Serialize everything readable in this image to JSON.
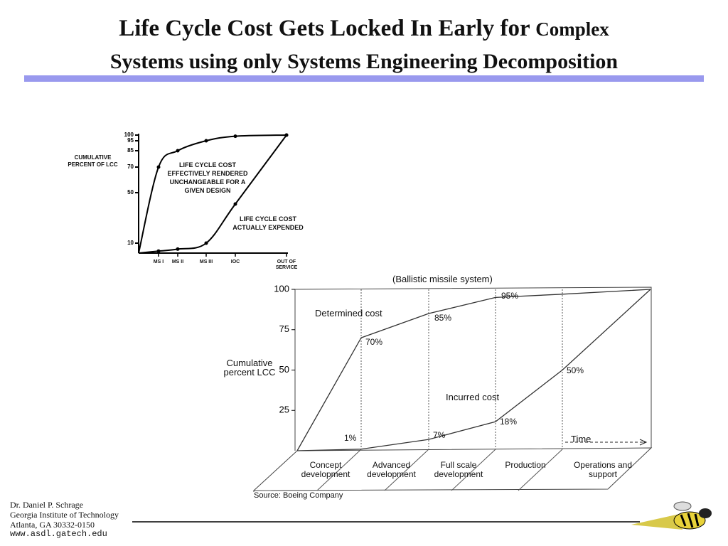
{
  "title": {
    "line1": "Life Cycle Cost Gets Locked In Early for",
    "line1_small": "Complex",
    "line2": "Systems using only Systems Engineering Decomposition"
  },
  "footer": [
    "Dr. Daniel P. Schrage",
    "Georgia Institute of Technology",
    "Atlanta, GA  30332-0150",
    "www.asdl.gatech.edu"
  ],
  "chart_data": [
    {
      "type": "line",
      "smooth": true,
      "y_label": "CUMULATIVE PERCENT OF LCC",
      "categories": [
        null,
        "MS I",
        "MS II",
        "MS III",
        "IOC",
        "OUT OF SERVICE"
      ],
      "ylim": [
        0,
        100
      ],
      "yticks": [
        10,
        50,
        70,
        85,
        95,
        100
      ],
      "series": [
        {
          "name": "LIFE CYCLE COST EFFECTIVELY RENDERED UNCHANGEABLE FOR A GIVEN DESIGN",
          "color": "#000000",
          "values": [
            0,
            70,
            85,
            95,
            99,
            100
          ]
        },
        {
          "name": "LIFE CYCLE COST ACTUALLY EXPENDED",
          "color": "#000000",
          "values": [
            0,
            2,
            4,
            10,
            41,
            100
          ]
        }
      ]
    },
    {
      "type": "line",
      "smooth": false,
      "title": "(Ballistic missile system)",
      "y_label": "Cumulative percent LCC",
      "x_label": "Time",
      "source": "Source:  Boeing Company",
      "categories": [
        "Concept development",
        "Advanced development",
        "Full scale development",
        "Production",
        "Operations and support",
        null
      ],
      "ylim": [
        0,
        100
      ],
      "yticks": [
        25,
        50,
        75,
        100
      ],
      "series": [
        {
          "name": "Determined cost",
          "color": "#333333",
          "values": [
            0,
            70,
            85,
            95,
            97,
            100
          ],
          "value_labels": [
            null,
            "70%",
            "85%",
            "95%",
            null,
            null
          ]
        },
        {
          "name": "Incurred cost",
          "color": "#333333",
          "values": [
            0,
            1,
            7,
            18,
            50,
            100
          ],
          "value_labels": [
            null,
            "1%",
            "7%",
            "18%",
            "50%",
            null
          ]
        }
      ]
    }
  ]
}
